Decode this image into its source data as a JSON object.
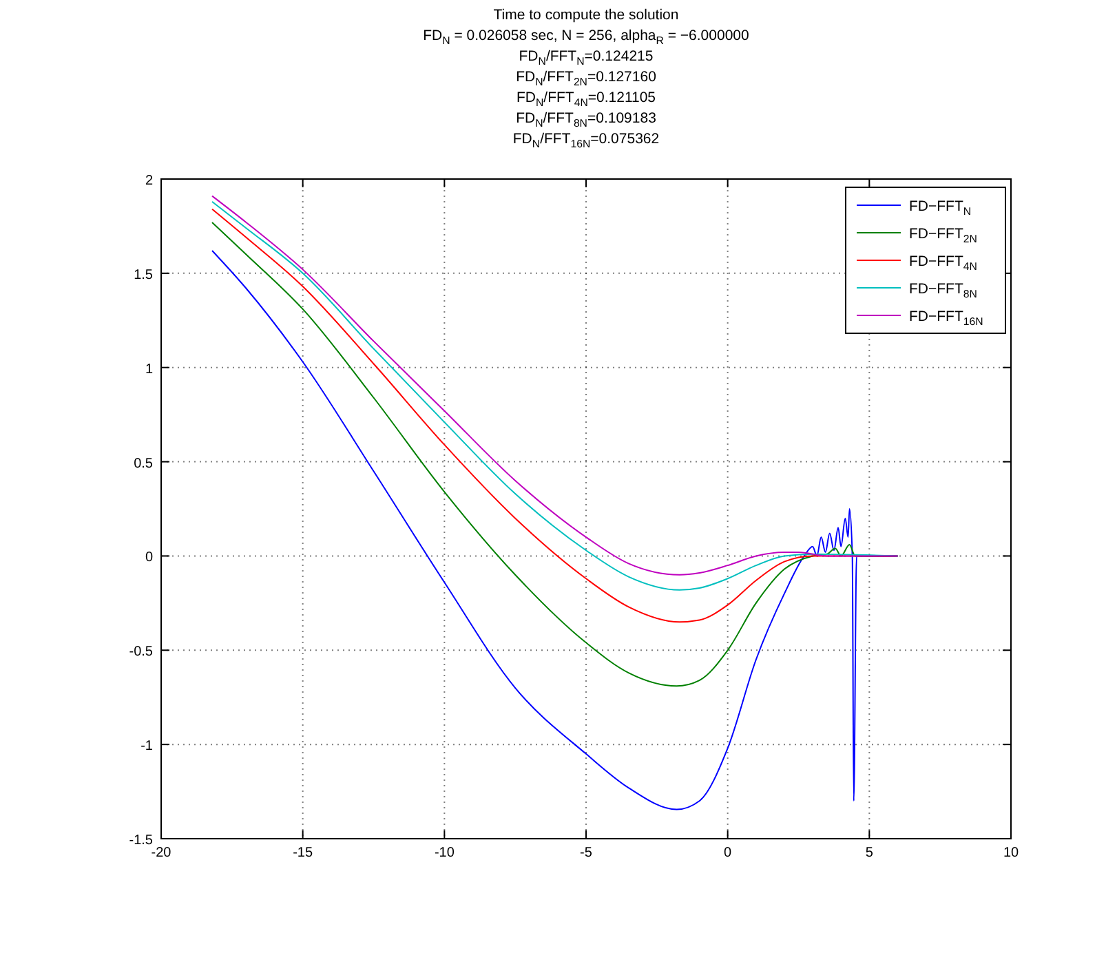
{
  "chart_data": {
    "type": "line",
    "title": "Time to compute the solution",
    "subtitle": "FD$_{N}$ = 0.026058 sec, N = 256, alpha$_{R}$ = −6.000000\nFD$_{N}$/FFT$_{N}$=0.124215\nFD$_{N}$/FFT$_{2N}$=0.127160\nFD$_{N}$/FFT$_{4N}$=0.121105\nFD$_{N}$/FFT$_{8N}$=0.109183\nFD$_{N}$/FFT$_{16N}$=0.075362",
    "xlim": [
      -20,
      10
    ],
    "xticks": [
      -20,
      -15,
      -10,
      -5,
      0,
      5,
      10
    ],
    "ylim": [
      -1.5,
      2
    ],
    "yticks": [
      -1.5,
      -1,
      -0.5,
      0,
      0.5,
      1,
      1.5,
      2
    ],
    "grid": true,
    "legend": "top right",
    "line_style": "solid",
    "marker": "none",
    "series": [
      {
        "name": "FD−FFT$_{N}$",
        "color": "#0000ff",
        "x": [
          -18.2,
          -17,
          -15,
          -12.5,
          -10,
          -7.5,
          -5,
          -3.5,
          -1.8,
          -1,
          0,
          1,
          2,
          2.7,
          3.0,
          3.15,
          3.3,
          3.45,
          3.6,
          3.75,
          3.9,
          4.0,
          4.15,
          4.25,
          4.3,
          4.4,
          4.45,
          4.55,
          6
        ],
        "values": [
          1.62,
          1.42,
          1.03,
          0.45,
          -0.14,
          -0.7,
          -1.05,
          -1.23,
          -1.345,
          -1.3,
          -1.02,
          -0.55,
          -0.2,
          0,
          0.05,
          0,
          0.1,
          0.02,
          0.12,
          0.03,
          0.15,
          0.05,
          0.2,
          0.1,
          0.25,
          0,
          -1.3,
          0,
          0
        ]
      },
      {
        "name": "FD−FFT$_{2N}$",
        "color": "#008000",
        "x": [
          -18.2,
          -17,
          -15,
          -12.5,
          -10,
          -7.5,
          -5,
          -3.5,
          -1.8,
          -1,
          0,
          1,
          2,
          3,
          3.5,
          3.8,
          4.0,
          4.3,
          4.5,
          6
        ],
        "values": [
          1.77,
          1.6,
          1.31,
          0.84,
          0.34,
          -0.1,
          -0.46,
          -0.62,
          -0.69,
          -0.66,
          -0.5,
          -0.25,
          -0.07,
          0,
          0.01,
          0.04,
          0,
          0.06,
          0,
          0
        ]
      },
      {
        "name": "FD−FFT$_{4N}$",
        "color": "#ff0000",
        "x": [
          -18.2,
          -17,
          -15,
          -12.5,
          -10,
          -7.5,
          -5,
          -3.5,
          -1.7,
          -1,
          0,
          1,
          2,
          3,
          6
        ],
        "values": [
          1.84,
          1.69,
          1.43,
          1.02,
          0.59,
          0.2,
          -0.12,
          -0.27,
          -0.35,
          -0.34,
          -0.26,
          -0.13,
          -0.03,
          0,
          0
        ]
      },
      {
        "name": "FD−FFT$_{8N}$",
        "color": "#00bfbf",
        "x": [
          -18.2,
          -17,
          -15,
          -12.5,
          -10,
          -7.5,
          -5,
          -3.5,
          -1.7,
          -1,
          0,
          1,
          2,
          3,
          6
        ],
        "values": [
          1.88,
          1.74,
          1.5,
          1.1,
          0.71,
          0.33,
          0.03,
          -0.11,
          -0.18,
          -0.17,
          -0.12,
          -0.05,
          0,
          0.01,
          0
        ]
      },
      {
        "name": "FD−FFT$_{16N}$",
        "color": "#bf00bf",
        "x": [
          -18.2,
          -17,
          -15,
          -12.5,
          -10,
          -7.5,
          -5,
          -3.5,
          -1.7,
          -1,
          0,
          1,
          2,
          2.5,
          3.5,
          6
        ],
        "values": [
          1.91,
          1.77,
          1.52,
          1.14,
          0.77,
          0.4,
          0.1,
          -0.04,
          -0.1,
          -0.09,
          -0.05,
          0,
          0.02,
          0.02,
          0,
          0
        ]
      }
    ]
  }
}
